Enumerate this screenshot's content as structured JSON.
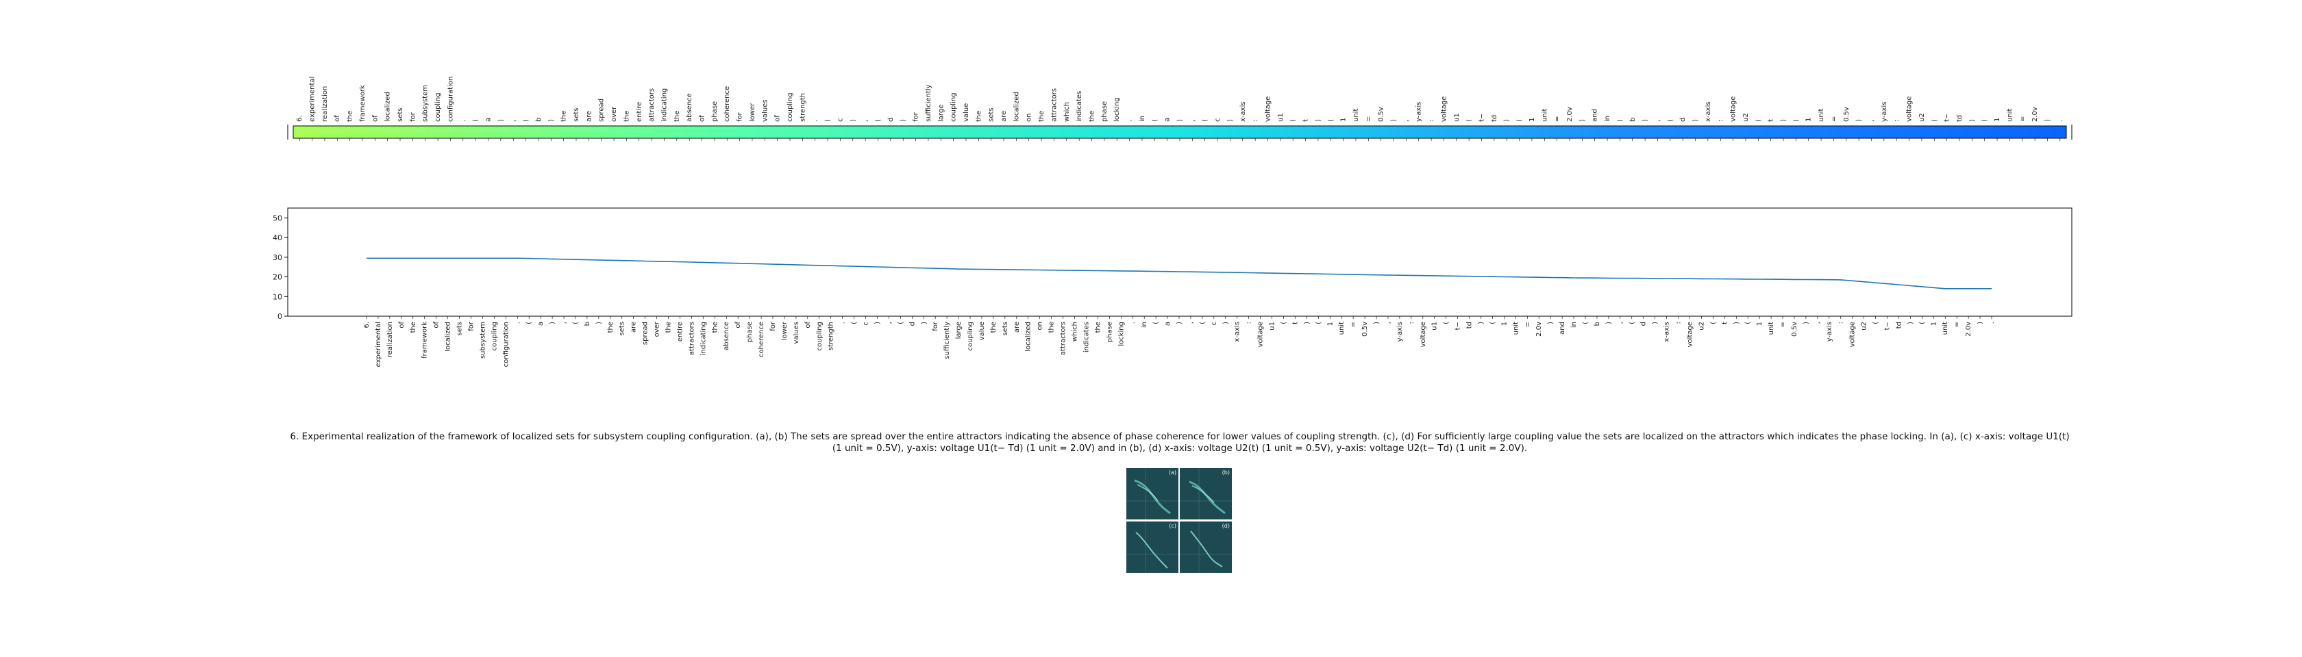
{
  "tokens": [
    "6.",
    "experimental",
    "realization",
    "of",
    "the",
    "framework",
    "of",
    "localized",
    "sets",
    "for",
    "subsystem",
    "coupling",
    "configuration",
    ".",
    "(",
    "a",
    ")",
    ",",
    "(",
    "b",
    ")",
    "the",
    "sets",
    "are",
    "spread",
    "over",
    "the",
    "entire",
    "attractors",
    "indicating",
    "the",
    "absence",
    "of",
    "phase",
    "coherence",
    "for",
    "lower",
    "values",
    "of",
    "coupling",
    "strength",
    ".",
    "(",
    "c",
    ")",
    ",",
    "(",
    "d",
    ")",
    "for",
    "sufficiently",
    "large",
    "coupling",
    "value",
    "the",
    "sets",
    "are",
    "localized",
    "on",
    "the",
    "attractors",
    "which",
    "indicates",
    "the",
    "phase",
    "locking",
    ".",
    "in",
    "(",
    "a",
    ")",
    ",",
    "(",
    "c",
    ")",
    "x-axis",
    ":",
    "voltage",
    "u1",
    "(",
    "t",
    ")",
    "(",
    "1",
    "unit",
    "=",
    "0.5v",
    ")",
    ",",
    "y-axis",
    ":",
    "voltage",
    "u1",
    "(",
    "t−",
    "td",
    ")",
    "(",
    "1",
    "unit",
    "=",
    "2.0v",
    ")",
    "and",
    "in",
    "(",
    "b",
    ")",
    ",",
    "(",
    "d",
    ")",
    "x-axis",
    ":",
    "voltage",
    "u2",
    "(",
    "t",
    ")",
    "(",
    "1",
    "unit",
    "=",
    "0.5v",
    ")",
    ",",
    "y-axis",
    ":",
    "voltage",
    "u2",
    "(",
    "t−",
    "td",
    ")",
    "(",
    "1",
    "unit",
    "=",
    "2.0v",
    ")",
    "."
  ],
  "chart_data": [
    {
      "type": "heatmap",
      "categories_ref": "tokens",
      "colormap": [
        "#aaff55",
        "#55ffaa",
        "#1be4e4",
        "#1c8cff",
        "#0a64ff"
      ]
    },
    {
      "type": "line",
      "categories_ref": "tokens",
      "yticks": [
        "0",
        "10",
        "20",
        "30",
        "40",
        "50"
      ],
      "ylim": [
        0,
        55
      ],
      "line_color": "#1f77b4",
      "series": [
        {
          "knots_x": [
            0,
            13,
            28,
            51,
            72,
            87,
            104,
            127,
            136
          ],
          "knots_y": [
            29.5,
            29.5,
            27.5,
            24,
            22.5,
            21,
            19.5,
            18.5,
            14
          ]
        }
      ]
    }
  ],
  "caption": "6. Experimental realization of the framework of localized sets for subsystem coupling configuration. (a), (b) The sets are spread over the entire attractors indicating the absence of phase coherence for lower values of coupling strength. (c), (d) For sufficiently large coupling value the sets are localized on the attractors which indicates the phase locking. In (a), (c) x-axis: voltage U1(t) (1 unit = 0.5V), y-axis: voltage U1(t− Td) (1 unit = 2.0V) and in (b), (d) x-axis: voltage U2(t) (1 unit = 0.5V), y-axis: voltage U2(t− Td) (1 unit = 2.0V).",
  "figure_panels": [
    "(a)",
    "(b)",
    "(c)",
    "(d)"
  ]
}
